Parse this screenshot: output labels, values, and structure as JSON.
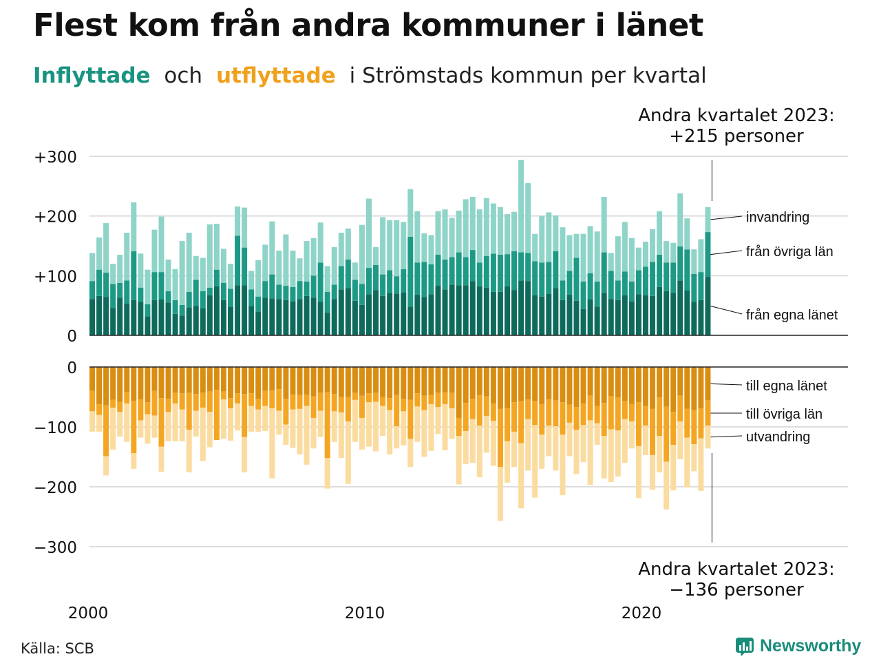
{
  "header": {
    "title": "Flest kom från andra kommuner i länet",
    "subtitle_in": "Inflyttade",
    "subtitle_och": "och",
    "subtitle_out": "utflyttade",
    "subtitle_rest": "i Strömstads  kommun  per  kvartal"
  },
  "annotations": {
    "top_line1": "Andra kvartalet 2023:",
    "top_line2": "+215 personer",
    "bottom_line1": "Andra kvartalet 2023:",
    "bottom_line2": "−136 personer"
  },
  "footer": {
    "source": "Källa: SCB",
    "logo": "Newsworthy"
  },
  "colors": {
    "in_same": "#0e6b5c",
    "in_other": "#1d9a86",
    "in_immigration": "#8fd4c8",
    "out_same": "#d98e12",
    "out_other": "#f4a623",
    "out_emigration": "#fbdca0",
    "grid": "#dddddd",
    "axis": "#222222"
  },
  "chart_data": [
    {
      "type": "bar",
      "stacked": true,
      "title": "Inflyttade",
      "x_start": "2000 Q1",
      "x_end": "2023 Q2",
      "x_tick_labels": [
        "2000",
        "2010",
        "2020"
      ],
      "y_tick_labels": [
        "0",
        "+100",
        "+200",
        "+300"
      ],
      "ylim": [
        0,
        300
      ],
      "series_labels": [
        "från egna länet",
        "från övriga län",
        "invandring"
      ],
      "totals": [
        138,
        164,
        188,
        120,
        135,
        172,
        223,
        137,
        110,
        177,
        199,
        127,
        111,
        158,
        172,
        133,
        130,
        186,
        187,
        145,
        120,
        216,
        214,
        108,
        126,
        152,
        191,
        142,
        169,
        142,
        129,
        158,
        163,
        189,
        116,
        148,
        172,
        179,
        122,
        185,
        229,
        148,
        198,
        193,
        193,
        190,
        245,
        208,
        171,
        168,
        208,
        211,
        197,
        209,
        228,
        232,
        211,
        230,
        221,
        215,
        203,
        207,
        294,
        255,
        170,
        200,
        206,
        201,
        181,
        168,
        170,
        170,
        183,
        174,
        232,
        138,
        166,
        190,
        163,
        147,
        157,
        178,
        208,
        158,
        155,
        238,
        196,
        144,
        161,
        215
      ],
      "egna_lanet": [
        61,
        66,
        64,
        46,
        63,
        53,
        59,
        56,
        32,
        59,
        60,
        55,
        36,
        33,
        47,
        49,
        45,
        67,
        82,
        59,
        48,
        84,
        84,
        49,
        40,
        63,
        62,
        61,
        59,
        57,
        61,
        66,
        63,
        56,
        38,
        61,
        77,
        79,
        58,
        51,
        69,
        76,
        66,
        71,
        70,
        72,
        48,
        68,
        64,
        69,
        83,
        77,
        85,
        84,
        84,
        91,
        82,
        80,
        73,
        73,
        82,
        76,
        92,
        91,
        67,
        65,
        70,
        79,
        59,
        68,
        58,
        44,
        60,
        48,
        71,
        61,
        59,
        67,
        57,
        69,
        67,
        66,
        81,
        74,
        71,
        92,
        75,
        56,
        59,
        98
      ],
      "ovriga_lan": [
        30,
        44,
        41,
        40,
        25,
        39,
        82,
        24,
        20,
        47,
        46,
        19,
        23,
        18,
        26,
        44,
        29,
        13,
        28,
        29,
        30,
        83,
        63,
        28,
        25,
        28,
        40,
        24,
        24,
        24,
        30,
        24,
        37,
        66,
        35,
        24,
        39,
        48,
        35,
        35,
        44,
        42,
        36,
        38,
        29,
        39,
        117,
        54,
        59,
        50,
        52,
        50,
        46,
        55,
        47,
        52,
        40,
        53,
        64,
        62,
        54,
        65,
        47,
        47,
        57,
        57,
        53,
        62,
        33,
        40,
        72,
        46,
        44,
        42,
        68,
        47,
        33,
        40,
        33,
        40,
        48,
        57,
        54,
        48,
        51,
        57,
        69,
        47,
        47,
        75
      ],
      "invandring": [
        47,
        54,
        83,
        34,
        47,
        80,
        82,
        57,
        58,
        71,
        93,
        53,
        52,
        107,
        99,
        40,
        56,
        106,
        77,
        57,
        42,
        49,
        67,
        31,
        61,
        61,
        89,
        57,
        86,
        61,
        38,
        68,
        63,
        67,
        43,
        63,
        56,
        52,
        29,
        99,
        116,
        30,
        96,
        84,
        94,
        79,
        80,
        86,
        48,
        49,
        73,
        84,
        66,
        70,
        97,
        89,
        89,
        97,
        84,
        80,
        67,
        66,
        155,
        117,
        46,
        78,
        83,
        60,
        89,
        60,
        40,
        80,
        79,
        84,
        93,
        30,
        74,
        83,
        73,
        38,
        42,
        55,
        73,
        36,
        33,
        89,
        52,
        41,
        55,
        42
      ]
    },
    {
      "type": "bar",
      "stacked": true,
      "title": "Utflyttade",
      "x_start": "2000 Q1",
      "x_end": "2023 Q2",
      "y_tick_labels": [
        "0",
        "−100",
        "−200",
        "−300"
      ],
      "ylim": [
        -300,
        0
      ],
      "series_labels": [
        "till egna länet",
        "till övriga län",
        "utvandring"
      ],
      "totals": [
        -108,
        -108,
        -181,
        -138,
        -116,
        -125,
        -170,
        -118,
        -128,
        -118,
        -175,
        -124,
        -124,
        -124,
        -176,
        -116,
        -157,
        -134,
        -122,
        -120,
        -123,
        -106,
        -176,
        -108,
        -108,
        -107,
        -186,
        -113,
        -130,
        -135,
        -146,
        -163,
        -136,
        -117,
        -203,
        -125,
        -152,
        -195,
        -125,
        -138,
        -133,
        -141,
        -115,
        -146,
        -136,
        -131,
        -167,
        -125,
        -150,
        -140,
        -112,
        -139,
        -120,
        -196,
        -162,
        -160,
        -184,
        -143,
        -165,
        -257,
        -193,
        -167,
        -236,
        -173,
        -218,
        -170,
        -149,
        -173,
        -214,
        -149,
        -179,
        -159,
        -197,
        -130,
        -186,
        -192,
        -183,
        -160,
        -136,
        -219,
        -147,
        -205,
        -176,
        -238,
        -206,
        -154,
        -201,
        -174,
        -207,
        -136
      ],
      "egna_lanet": [
        -40,
        -62,
        -64,
        -55,
        -58,
        -42,
        -57,
        -54,
        -59,
        -40,
        -52,
        -53,
        -43,
        -44,
        -43,
        -45,
        -43,
        -41,
        -38,
        -41,
        -52,
        -44,
        -45,
        -44,
        -53,
        -40,
        -39,
        -37,
        -53,
        -46,
        -47,
        -46,
        -49,
        -43,
        -42,
        -45,
        -50,
        -50,
        -43,
        -48,
        -44,
        -43,
        -50,
        -52,
        -47,
        -53,
        -55,
        -44,
        -48,
        -47,
        -43,
        -42,
        -43,
        -85,
        -60,
        -53,
        -47,
        -49,
        -61,
        -70,
        -69,
        -59,
        -57,
        -54,
        -57,
        -62,
        -54,
        -56,
        -59,
        -63,
        -67,
        -61,
        -48,
        -65,
        -60,
        -49,
        -51,
        -57,
        -62,
        -59,
        -65,
        -70,
        -51,
        -66,
        -75,
        -48,
        -70,
        -72,
        -69,
        -56
      ],
      "ovriga_lan": [
        -34,
        -18,
        -85,
        -13,
        -17,
        -19,
        -87,
        -35,
        -20,
        -41,
        -81,
        -22,
        -18,
        -27,
        -62,
        -28,
        -25,
        -34,
        -84,
        -13,
        -17,
        -17,
        -72,
        -21,
        -18,
        -25,
        -30,
        -36,
        -43,
        -25,
        -23,
        -19,
        -36,
        -30,
        -110,
        -29,
        -26,
        -41,
        -12,
        -37,
        -15,
        -15,
        -15,
        -20,
        -52,
        -21,
        -65,
        -22,
        -24,
        -15,
        -24,
        -20,
        -26,
        -30,
        -47,
        -34,
        -51,
        -33,
        -29,
        -97,
        -55,
        -49,
        -70,
        -33,
        -40,
        -51,
        -44,
        -43,
        -54,
        -30,
        -38,
        -36,
        -41,
        -29,
        -55,
        -55,
        -55,
        -30,
        -29,
        -73,
        -33,
        -77,
        -64,
        -92,
        -55,
        -43,
        -48,
        -57,
        -50,
        -42
      ],
      "utvandring": [
        -34,
        -28,
        -32,
        -70,
        -41,
        -64,
        -26,
        -29,
        -49,
        -37,
        -42,
        -49,
        -63,
        -53,
        -71,
        -43,
        -89,
        -59,
        0,
        -66,
        -54,
        -45,
        -59,
        -43,
        -37,
        -42,
        -117,
        -40,
        -34,
        -64,
        -76,
        -98,
        -51,
        -44,
        -51,
        -51,
        -76,
        -104,
        -70,
        -53,
        -74,
        -83,
        -50,
        -74,
        -37,
        -57,
        -47,
        -59,
        -78,
        -78,
        -45,
        -77,
        -51,
        -81,
        -55,
        -73,
        -86,
        -61,
        -75,
        -90,
        -69,
        -59,
        -109,
        -86,
        -121,
        -57,
        -51,
        -74,
        -101,
        -56,
        -74,
        -62,
        -108,
        -36,
        -71,
        -88,
        -77,
        -73,
        -45,
        -87,
        -49,
        -58,
        -61,
        -80,
        -76,
        -63,
        -83,
        -45,
        -88,
        -38
      ]
    }
  ]
}
